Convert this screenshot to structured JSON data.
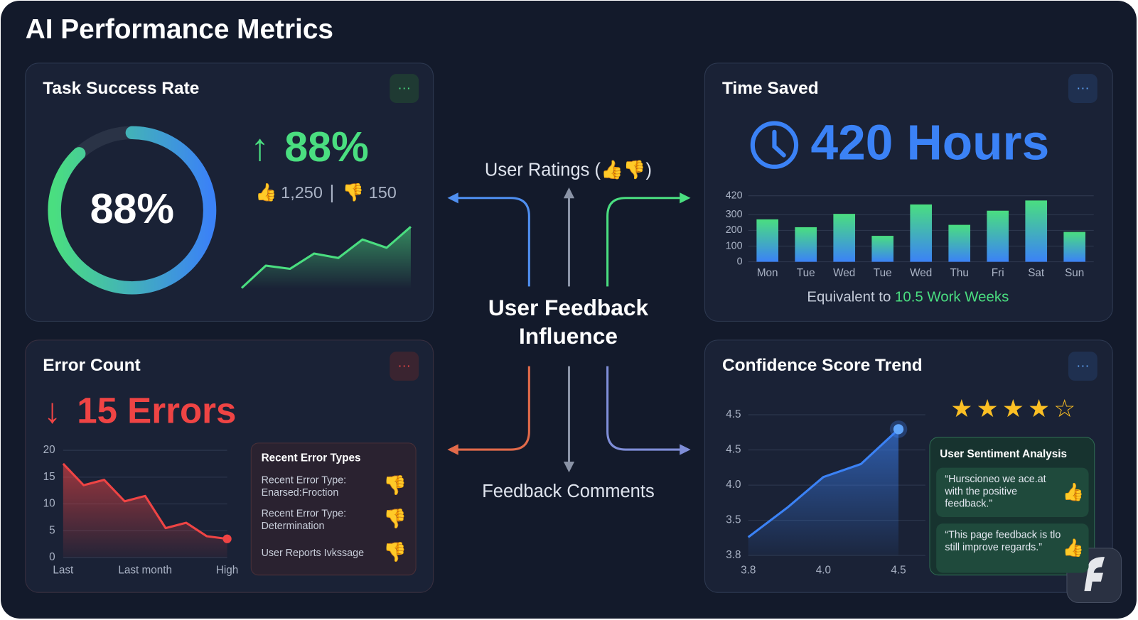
{
  "header": {
    "title": "AI Performance Metrics"
  },
  "task_success": {
    "title": "Task Success Rate",
    "gauge": {
      "value": 88,
      "label": "88%"
    },
    "headline": {
      "value": 88,
      "label": "88%"
    },
    "upvotes": {
      "value": 1250,
      "label": "1,250"
    },
    "downvotes": 150,
    "trend": {
      "type": "area",
      "values": [
        1,
        36,
        31,
        55,
        48,
        77,
        64,
        97
      ],
      "ylim": [
        0,
        100
      ],
      "color": "#4ade80"
    }
  },
  "center": {
    "top_label": "User Ratings (👍👎)",
    "title": "User Feedback Influence",
    "bottom_label": "Feedback Comments"
  },
  "time_saved": {
    "title": "Time Saved",
    "headline": "420 Hours",
    "chart": {
      "type": "bar",
      "categories": [
        "Mon",
        "Tue",
        "Wed",
        "Tue",
        "Wed",
        "Thu",
        "Fri",
        "Sat",
        "Sun"
      ],
      "values": [
        270,
        220,
        305,
        165,
        365,
        235,
        325,
        390,
        190
      ],
      "ylim": [
        0,
        420
      ],
      "yticks": [
        0,
        100,
        200,
        300,
        420
      ],
      "grid": true
    },
    "footnote": "Equivalent to",
    "footnote_highlight": "10.5 Work Weeks"
  },
  "errors": {
    "title": "Error Count",
    "headline": "15 Errors",
    "chart": {
      "type": "area",
      "categories": [
        "Last",
        null,
        null,
        null,
        "Last month",
        null,
        null,
        null,
        "High"
      ],
      "values": [
        17.5,
        13.5,
        14.5,
        10.5,
        11.5,
        5.5,
        6.5,
        4,
        3.5
      ],
      "ylim": [
        0,
        20
      ],
      "yticks": [
        0,
        5,
        10,
        15,
        20
      ],
      "grid": true,
      "color": "#ef4444"
    },
    "recent": {
      "title": "Recent Error Types",
      "items": [
        [
          "Recent Error Type:",
          "Enarsed:Froction"
        ],
        [
          "Recent Error Type:",
          "Determination"
        ],
        [
          "User Reports Ivkssage"
        ]
      ]
    }
  },
  "confidence": {
    "title": "Confidence Score Trend",
    "rating": 4,
    "rating_max": 5,
    "chart": {
      "type": "area",
      "x": [
        0,
        0.52,
        1,
        1.5,
        2
      ],
      "values": [
        0.52,
        1.36,
        2.23,
        2.6,
        3.59
      ],
      "xlim": [
        0,
        2
      ],
      "ylim": [
        0,
        4
      ],
      "xticks": [
        {
          "value": 0,
          "label": "3.8"
        },
        {
          "value": 1,
          "label": "4.0"
        },
        {
          "value": 2,
          "label": "4.5"
        }
      ],
      "yticks": [
        {
          "value": 0,
          "label": "3.8"
        },
        {
          "value": 1,
          "label": "3.5"
        },
        {
          "value": 2,
          "label": "4.0"
        },
        {
          "value": 3,
          "label": "4.5"
        },
        {
          "value": 4,
          "label": "4.5"
        }
      ],
      "grid": true,
      "color": "#3b82f6"
    },
    "sentiment": {
      "title": "User Sentiment Analysis",
      "comments": [
        "“Hurscioneo we ace.at with the positive feedback.”",
        "“This page feedback is tlo still improve regards.”"
      ]
    }
  }
}
